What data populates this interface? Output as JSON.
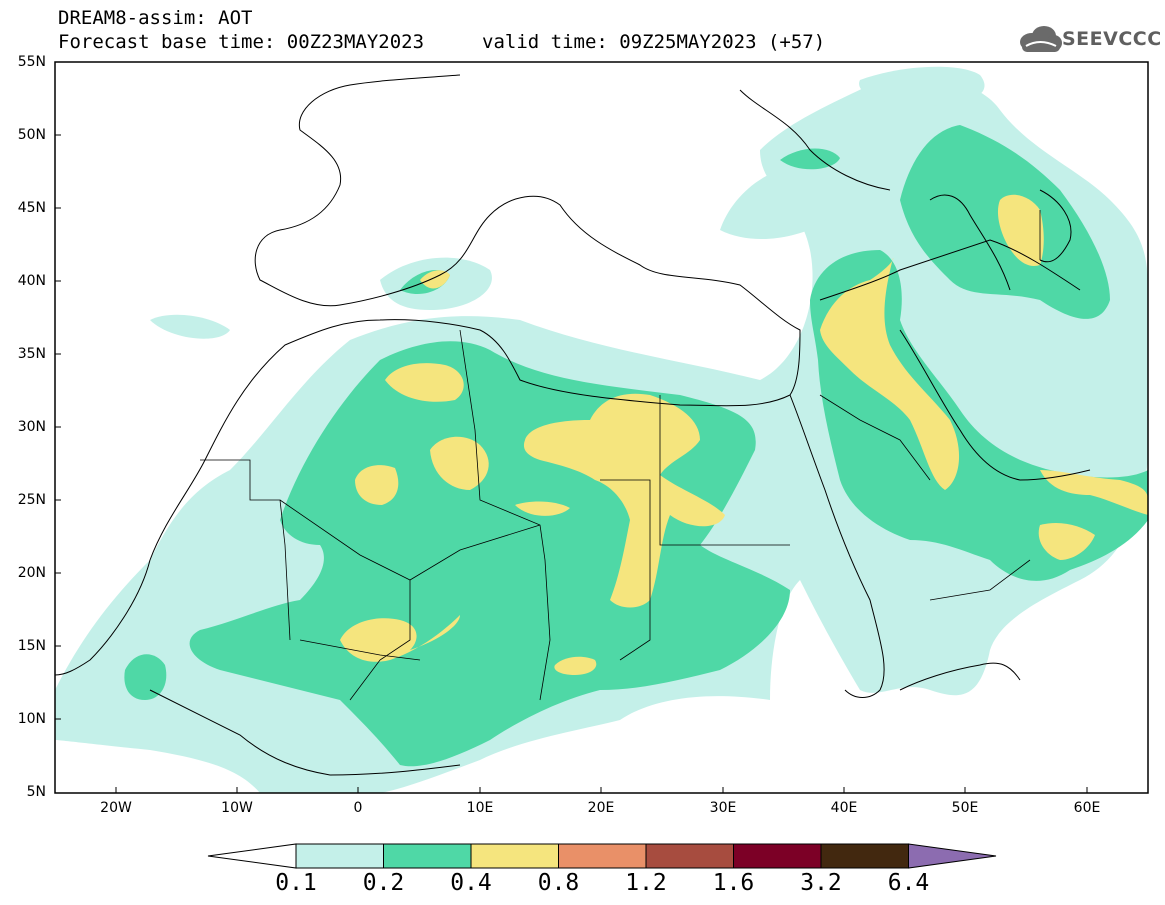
{
  "header": {
    "model_line": "DREAM8-assim: AOT",
    "base_time": "Forecast base time: 00Z23MAY2023",
    "valid_time": "valid time: 09Z25MAY2023 (+57)"
  },
  "logo": {
    "text": "SEEVCCC",
    "icon": "cloud-icon"
  },
  "map": {
    "lat_labels": [
      "55N",
      "50N",
      "45N",
      "40N",
      "35N",
      "30N",
      "25N",
      "20N",
      "15N",
      "10N",
      "5N"
    ],
    "lon_labels": [
      "20W",
      "10W",
      "0",
      "10E",
      "20E",
      "30E",
      "40E",
      "50E",
      "60E"
    ]
  },
  "colorbar": {
    "labels": [
      "0.1",
      "0.2",
      "0.4",
      "0.8",
      "1.2",
      "1.6",
      "3.2",
      "6.4"
    ],
    "colors": [
      "#c4f0e9",
      "#4fd8a6",
      "#f5e57e",
      "#e99068",
      "#a74c3f",
      "#7c0026",
      "#42280f",
      "#8c6cb0"
    ]
  },
  "colors": {
    "aot_0_1": "#c4f0e9",
    "aot_0_2": "#4fd8a6",
    "aot_0_4": "#f5e57e"
  }
}
